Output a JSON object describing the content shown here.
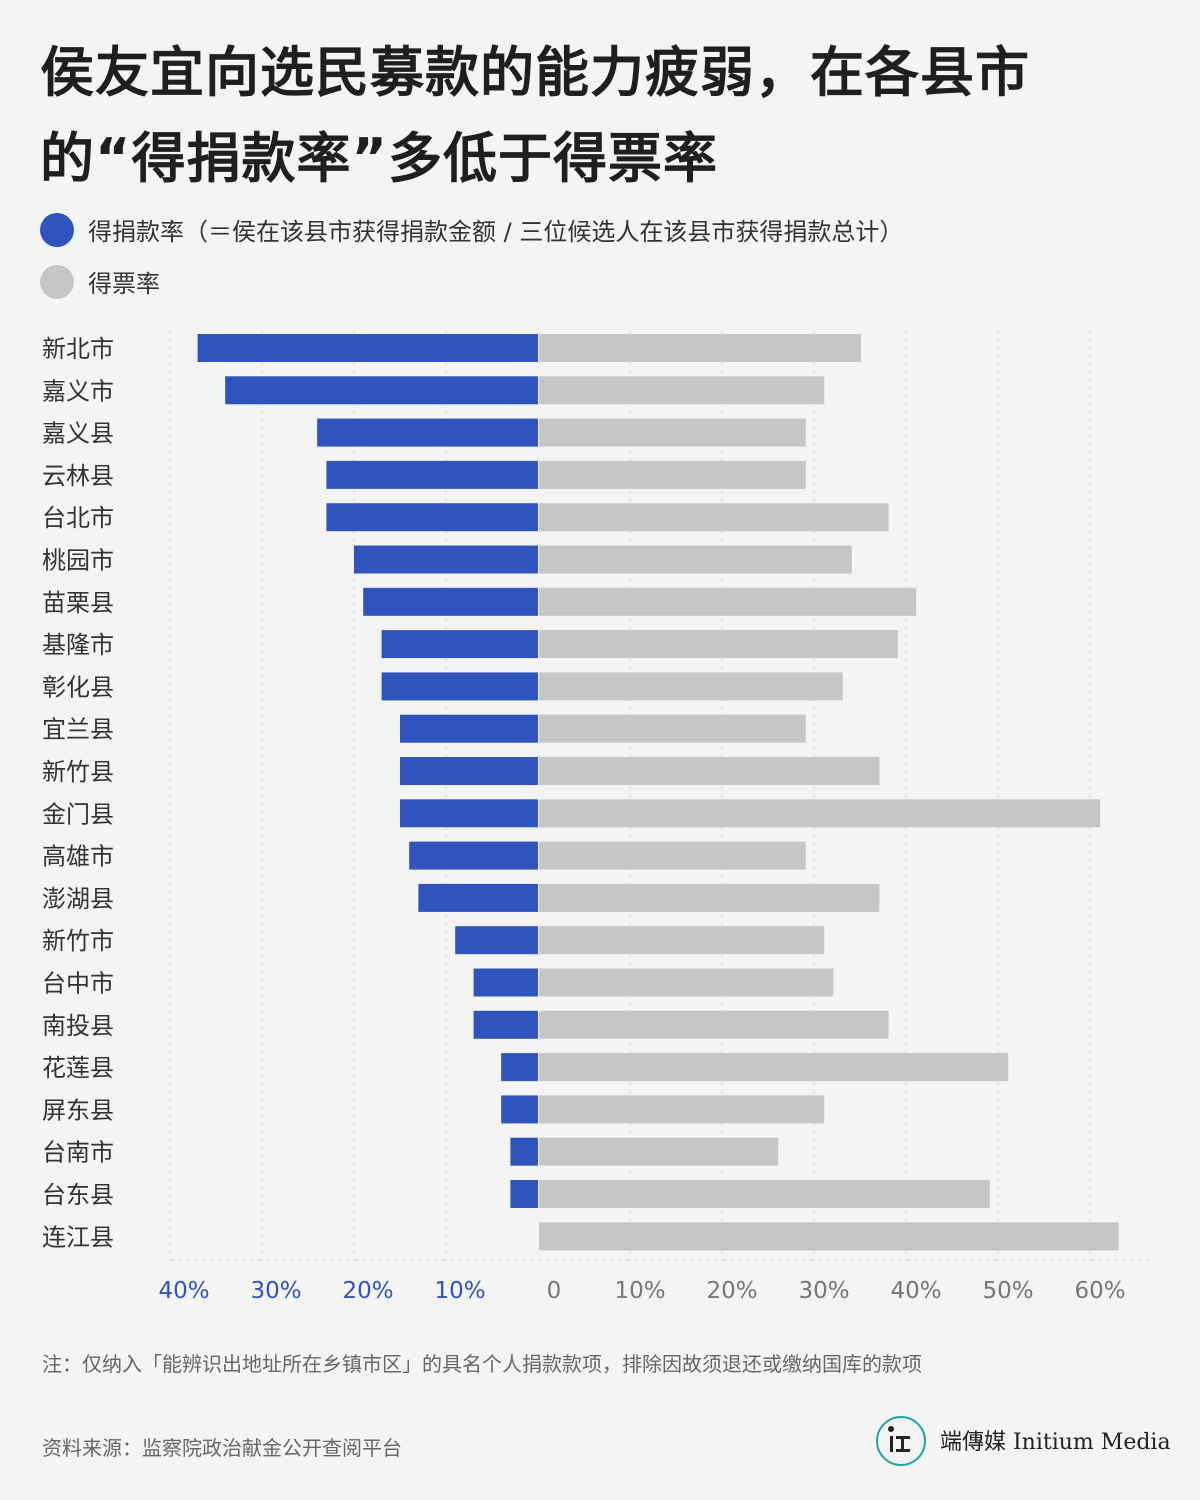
{
  "title": "侯友宜向选民募款的能力疲弱，在各县市的“得捐款率”多低于得票率",
  "legend": [
    {
      "label": "得捐款率（＝侯在该县市获得捐款金额 / 三位候选人在该县市获得捐款总计）",
      "color": "#2f54bd"
    },
    {
      "label": "得票率",
      "color": "#c6c6c6"
    }
  ],
  "chart_data": {
    "type": "bar",
    "orientation": "horizontal-diverging",
    "categories": [
      "新北市",
      "嘉义市",
      "嘉义县",
      "云林县",
      "台北市",
      "桃园市",
      "苗栗县",
      "基隆市",
      "彰化县",
      "宜兰县",
      "新竹县",
      "金门县",
      "高雄市",
      "澎湖县",
      "新竹市",
      "台中市",
      "南投县",
      "花莲县",
      "屏东县",
      "台南市",
      "台东县",
      "连江县"
    ],
    "series": [
      {
        "name": "得捐款率",
        "color": "#2f54bd",
        "direction": "left",
        "values": [
          37,
          34,
          24,
          23,
          23,
          20,
          19,
          17,
          17,
          15,
          15,
          15,
          14,
          13,
          9,
          7,
          7,
          4,
          4,
          3,
          3,
          0
        ]
      },
      {
        "name": "得票率",
        "color": "#c6c6c6",
        "direction": "right",
        "values": [
          35,
          31,
          29,
          29,
          38,
          34,
          41,
          39,
          33,
          29,
          37,
          61,
          29,
          37,
          31,
          32,
          38,
          51,
          31,
          26,
          49,
          63
        ]
      }
    ],
    "left_ticks": [
      "40%",
      "30%",
      "20%",
      "10%"
    ],
    "right_ticks": [
      "0",
      "10%",
      "20%",
      "30%",
      "40%",
      "50%",
      "60%"
    ],
    "left_tick_values": [
      40,
      30,
      20,
      10
    ],
    "right_tick_values": [
      0,
      10,
      20,
      30,
      40,
      50,
      60
    ],
    "xlim_left": [
      0,
      40
    ],
    "xlim_right": [
      0,
      65
    ],
    "grid": true,
    "legend_position": "top-left"
  },
  "note": "注：仅纳入「能辨识出地址所在乡镇市区」的具名个人捐款款项，排除因故须退还或缴纳国库的款项",
  "source": "资料来源：监察院政治献金公开查阅平台",
  "brand": {
    "name": "端傳媒 Initium Media",
    "color": "#1fa3a6"
  }
}
